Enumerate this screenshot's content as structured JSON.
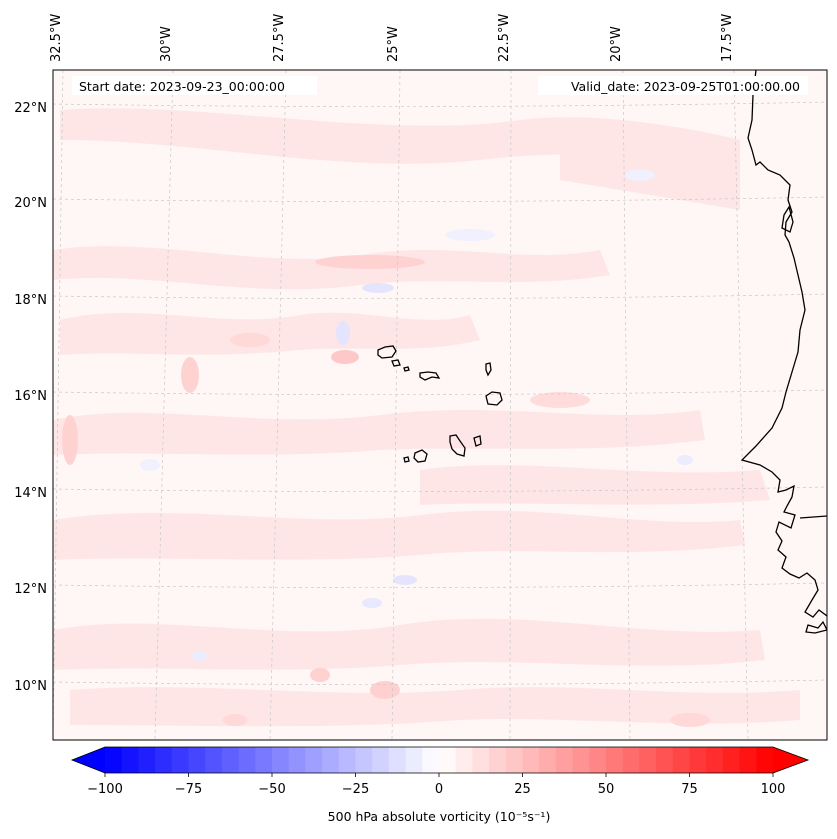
{
  "map": {
    "start_date_text": "Start date: 2023-09-23_00:00:00",
    "valid_date_text": "Valid_date: 2023-09-25T01:00:00.00",
    "lon_ticks": [
      "32.5°W",
      "30°W",
      "27.5°W",
      "25°W",
      "22.5°W",
      "20°W",
      "17.5°W"
    ],
    "lat_ticks": [
      "22°N",
      "20°N",
      "18°N",
      "16°N",
      "14°N",
      "12°N",
      "10°N"
    ],
    "field_colors": {
      "background": "#fff6f6",
      "light_red": "#ffe4e4",
      "mid_red": "#ffcccc",
      "light_blue": "#ececff",
      "mid_blue": "#d6d6ff"
    }
  },
  "colorbar": {
    "label": "500 hPa absolute vorticity (10⁻⁵s⁻¹)",
    "ticks": [
      "−100",
      "−75",
      "−50",
      "−25",
      "0",
      "25",
      "50",
      "75",
      "100"
    ],
    "min": -100,
    "max": 100,
    "step": 5,
    "low_color": "#0000ff",
    "mid_color": "#ffffff",
    "high_color": "#ff0000"
  }
}
